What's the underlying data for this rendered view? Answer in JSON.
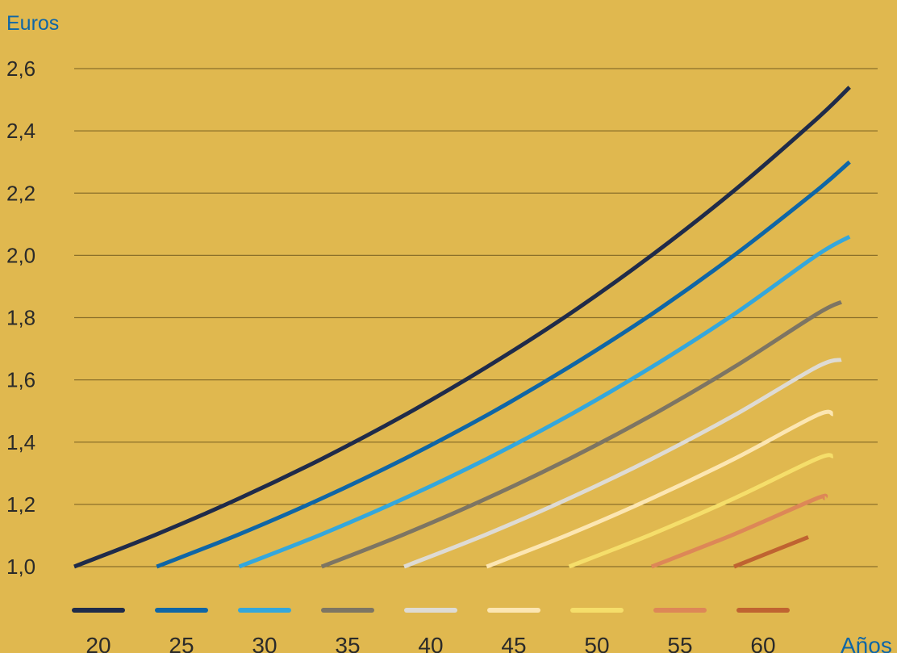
{
  "chart_data": {
    "type": "line",
    "ylabel": "Euros",
    "xlabel": "Años",
    "yticks": [
      "2,6",
      "2,4",
      "2,2",
      "2,0",
      "1,8",
      "1,6",
      "1,4",
      "1,2",
      "1,0"
    ],
    "ylim": [
      1.0,
      2.6
    ],
    "grid": true,
    "legend_labels": [
      "20",
      "25",
      "30",
      "35",
      "40",
      "45",
      "50",
      "55",
      "60"
    ],
    "legend_placement": "bottom",
    "series": [
      {
        "name": "20",
        "color": "#1f2b4a",
        "x": [
          0,
          5,
          10,
          15,
          20,
          25,
          30,
          35,
          40,
          45,
          47
        ],
        "y": [
          1.0,
          1.104,
          1.219,
          1.346,
          1.486,
          1.641,
          1.811,
          2.0,
          2.208,
          2.438,
          2.54
        ]
      },
      {
        "name": "25",
        "color": "#0f66a6",
        "x": [
          0,
          5,
          10,
          15,
          20,
          25,
          30,
          35,
          40,
          42
        ],
        "y": [
          1.0,
          1.104,
          1.219,
          1.346,
          1.486,
          1.641,
          1.811,
          2.0,
          2.208,
          2.3
        ]
      },
      {
        "name": "30",
        "color": "#34a7dc",
        "x": [
          0,
          5,
          10,
          15,
          20,
          25,
          30,
          35,
          37
        ],
        "y": [
          1.0,
          1.104,
          1.219,
          1.346,
          1.486,
          1.641,
          1.811,
          2.0,
          2.06
        ]
      },
      {
        "name": "35",
        "color": "#7d7563",
        "x": [
          0,
          5,
          10,
          15,
          20,
          25,
          30,
          31.5
        ],
        "y": [
          1.0,
          1.104,
          1.219,
          1.346,
          1.486,
          1.641,
          1.811,
          1.85
        ]
      },
      {
        "name": "40",
        "color": "#dedbd4",
        "x": [
          0,
          5,
          10,
          15,
          20,
          25,
          26.5
        ],
        "y": [
          1.0,
          1.104,
          1.219,
          1.346,
          1.486,
          1.641,
          1.665
        ]
      },
      {
        "name": "45",
        "color": "#fce6b2",
        "x": [
          0,
          5,
          10,
          15,
          20,
          21
        ],
        "y": [
          1.0,
          1.104,
          1.219,
          1.346,
          1.486,
          1.49
        ]
      },
      {
        "name": "50",
        "color": "#f5de6a",
        "x": [
          0,
          5,
          10,
          15,
          16
        ],
        "y": [
          1.0,
          1.104,
          1.219,
          1.346,
          1.355
        ]
      },
      {
        "name": "55",
        "color": "#dd8757",
        "x": [
          0,
          5,
          10,
          10.5
        ],
        "y": [
          1.0,
          1.104,
          1.219,
          1.22
        ]
      },
      {
        "name": "60",
        "color": "#bf6331",
        "x": [
          0,
          4.5
        ],
        "y": [
          1.0,
          1.095
        ]
      }
    ],
    "start_ages": [
      20,
      25,
      30,
      35,
      40,
      45,
      50,
      55,
      60
    ]
  },
  "colors": {
    "background": "#e0b84f",
    "axis_label": "#0f66a6",
    "tick_label": "#2a2a2a",
    "grid": "#8a6f2a"
  }
}
